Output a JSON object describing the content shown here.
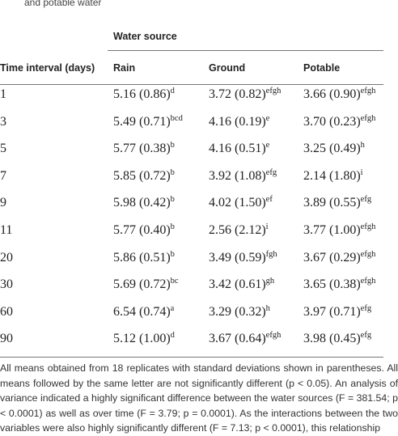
{
  "caption": "and potable water",
  "table": {
    "group_header": "Water source",
    "columns": [
      "Time interval (days)",
      "Rain",
      "Ground",
      "Potable"
    ],
    "rows": [
      [
        "1",
        {
          "text": "5.16 (0.86)",
          "sup": "d"
        },
        {
          "text": "3.72 (0.82)",
          "sup": "efgh"
        },
        {
          "text": "3.66 (0.90)",
          "sup": "efgh"
        }
      ],
      [
        "3",
        {
          "text": "5.49 (0.71)",
          "sup": "bcd"
        },
        {
          "text": "4.16 (0.19)",
          "sup": "e"
        },
        {
          "text": "3.70 (0.23)",
          "sup": "efgh"
        }
      ],
      [
        "5",
        {
          "text": "5.77 (0.38)",
          "sup": "b"
        },
        {
          "text": "4.16 (0.51)",
          "sup": "e"
        },
        {
          "text": "3.25 (0.49)",
          "sup": "h"
        }
      ],
      [
        "7",
        {
          "text": "5.85 (0.72)",
          "sup": "b"
        },
        {
          "text": "3.92 (1.08)",
          "sup": "efg"
        },
        {
          "text": "2.14 (1.80)",
          "sup": "i"
        }
      ],
      [
        "9",
        {
          "text": "5.98 (0.42)",
          "sup": "b"
        },
        {
          "text": "4.02 (1.50)",
          "sup": "ef"
        },
        {
          "text": "3.89 (0.55)",
          "sup": "efg"
        }
      ],
      [
        "11",
        {
          "text": "5.77 (0.40)",
          "sup": "b"
        },
        {
          "text": "2.56 (2.12)",
          "sup": "i"
        },
        {
          "text": "3.77 (1.00)",
          "sup": "efgh"
        }
      ],
      [
        "20",
        {
          "text": "5.86 (0.51)",
          "sup": "b"
        },
        {
          "text": "3.49 (0.59)",
          "sup": "fgh"
        },
        {
          "text": "3.67 (0.29)",
          "sup": "efgh"
        }
      ],
      [
        "30",
        {
          "text": "5.69 (0.72)",
          "sup": "bc"
        },
        {
          "text": "3.42 (0.61)",
          "sup": "gh"
        },
        {
          "text": "3.65 (0.38)",
          "sup": "efgh"
        }
      ],
      [
        "60",
        {
          "text": "6.54 (0.74)",
          "sup": "a"
        },
        {
          "text": "3.29 (0.32)",
          "sup": "h"
        },
        {
          "text": "3.97 (0.71)",
          "sup": "efg"
        }
      ],
      [
        "90",
        {
          "text": "5.12 (1.00)",
          "sup": "d"
        },
        {
          "text": "3.67 (0.64)",
          "sup": "efgh"
        },
        {
          "text": "3.98 (0.45)",
          "sup": "efg"
        }
      ]
    ]
  },
  "footnote": "All means obtained from 18 replicates with standard deviations shown in parentheses. All means followed by the same letter are not significantly different (p < 0.05). An analysis of variance indicated a highly significant difference between the water sources (F = 381.54; p < 0.0001) as well as over time (F = 3.79; p = 0.0001). As the interactions between the two variables were also highly significantly different (F = 7.13; p < 0.0001), this relationship"
}
